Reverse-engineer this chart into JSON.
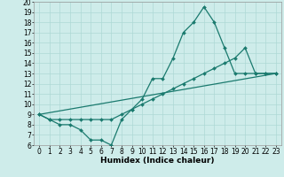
{
  "xlabel": "Humidex (Indice chaleur)",
  "background_color": "#ceecea",
  "grid_color": "#add8d5",
  "line_color": "#1a7a6e",
  "xlim": [
    -0.5,
    23.5
  ],
  "ylim": [
    6,
    20
  ],
  "xticks": [
    0,
    1,
    2,
    3,
    4,
    5,
    6,
    7,
    8,
    9,
    10,
    11,
    12,
    13,
    14,
    15,
    16,
    17,
    18,
    19,
    20,
    21,
    22,
    23
  ],
  "yticks": [
    6,
    7,
    8,
    9,
    10,
    11,
    12,
    13,
    14,
    15,
    16,
    17,
    18,
    19,
    20
  ],
  "series1_x": [
    0,
    1,
    2,
    3,
    4,
    5,
    6,
    7,
    8,
    9,
    10,
    11,
    12,
    13,
    14,
    15,
    16,
    17,
    18,
    19,
    20,
    21,
    22,
    23
  ],
  "series1_y": [
    9,
    8.5,
    8,
    8,
    7.5,
    6.5,
    6.5,
    6,
    8.5,
    9.5,
    10.5,
    12.5,
    12.5,
    14.5,
    17,
    18,
    19.5,
    18,
    15.5,
    13,
    13,
    13,
    13,
    13
  ],
  "series2_x": [
    0,
    1,
    2,
    3,
    4,
    5,
    6,
    7,
    8,
    9,
    10,
    11,
    12,
    13,
    14,
    15,
    16,
    17,
    18,
    19,
    20,
    21,
    22,
    23
  ],
  "series2_y": [
    9,
    8.5,
    8.5,
    8.5,
    8.5,
    8.5,
    8.5,
    8.5,
    9,
    9.5,
    10,
    10.5,
    11,
    11.5,
    12,
    12.5,
    13,
    13.5,
    14,
    14.5,
    15.5,
    13,
    13,
    13
  ],
  "series3_x": [
    0,
    23
  ],
  "series3_y": [
    9,
    13
  ],
  "markersize": 2.0,
  "linewidth": 0.9,
  "font_size": 5.5,
  "xlabel_fontsize": 6.5
}
